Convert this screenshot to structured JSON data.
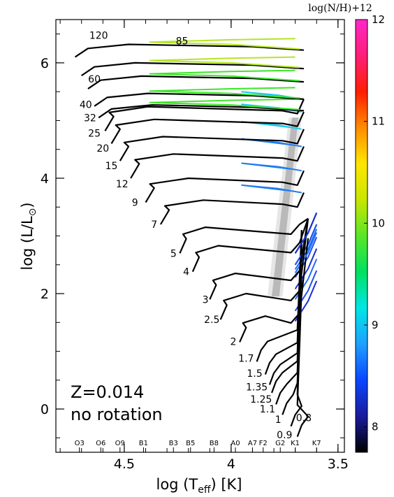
{
  "chart_data": {
    "type": "line",
    "xlabel": "log (T",
    "xlabel_sub": "eff",
    "xlabel_unit": ") [K]",
    "ylabel": "log (L/L",
    "ylabel_sun": "⊙",
    "ylabel_close": ")",
    "x_axis_reversed": true,
    "xlim": [
      4.82,
      3.47
    ],
    "ylim": [
      -0.75,
      6.75
    ],
    "xticks": [
      {
        "value": 4.5,
        "label": "4.5"
      },
      {
        "value": 4.0,
        "label": "4"
      },
      {
        "value": 3.5,
        "label": "3.5"
      }
    ],
    "yticks": [
      {
        "value": 0,
        "label": "0"
      },
      {
        "value": 2,
        "label": "2"
      },
      {
        "value": 4,
        "label": "4"
      },
      {
        "value": 6,
        "label": "6"
      }
    ],
    "spectral_types": [
      {
        "label": "O3",
        "x": 4.71
      },
      {
        "label": "O6",
        "x": 4.61
      },
      {
        "label": "O9",
        "x": 4.52
      },
      {
        "label": "B1",
        "x": 4.41
      },
      {
        "label": "B3",
        "x": 4.27
      },
      {
        "label": "B5",
        "x": 4.19
      },
      {
        "label": "B8",
        "x": 4.08
      },
      {
        "label": "A0",
        "x": 3.98
      },
      {
        "label": "A7",
        "x": 3.9
      },
      {
        "label": "F2",
        "x": 3.85
      },
      {
        "label": "G2",
        "x": 3.77
      },
      {
        "label": "K1",
        "x": 3.7
      },
      {
        "label": "K7",
        "x": 3.6
      }
    ],
    "annotation": {
      "line1": "Z=0.014",
      "line2": "no rotation"
    },
    "colorbar": {
      "title": "log(N/H)+12",
      "range": [
        7.75,
        12.0
      ],
      "ticks": [
        "8",
        "9",
        "10",
        "11",
        "12"
      ],
      "tick_values": [
        8,
        9,
        10,
        11,
        12
      ],
      "colors": [
        "#000000",
        "#1a1a9c",
        "#0a46ff",
        "#1ea0ff",
        "#00e6e6",
        "#00e060",
        "#5ae628",
        "#c8e600",
        "#ffe600",
        "#ff8c00",
        "#ff1e00",
        "#ff1e78",
        "#ff28c8"
      ]
    },
    "instability_strip": {
      "color": "#b4b4b4"
    },
    "tracks": [
      {
        "mass": "0.8",
        "zams": [
          3.69,
          -0.48
        ],
        "lx": 3.66,
        "ly": -0.15,
        "color": "#000000"
      },
      {
        "mass": "0.9",
        "zams": [
          3.72,
          -0.3
        ],
        "lx": 3.75,
        "ly": -0.45,
        "color": "#000000"
      },
      {
        "mass": "1",
        "zams": [
          3.76,
          -0.1
        ],
        "lx": 3.78,
        "ly": -0.18,
        "color": "#000000"
      },
      {
        "mass": "1.1",
        "zams": [
          3.79,
          0.08
        ],
        "lx": 3.83,
        "ly": 0.0,
        "color": "#000000"
      },
      {
        "mass": "1.25",
        "zams": [
          3.81,
          0.28
        ],
        "lx": 3.86,
        "ly": 0.17,
        "color": "#000000"
      },
      {
        "mass": "1.35",
        "zams": [
          3.82,
          0.42
        ],
        "lx": 3.88,
        "ly": 0.38,
        "color": "#000000"
      },
      {
        "mass": "1.5",
        "zams": [
          3.84,
          0.6
        ],
        "lx": 3.89,
        "ly": 0.62,
        "color": "#000000"
      },
      {
        "mass": "1.7",
        "zams": [
          3.88,
          0.82
        ],
        "lx": 3.93,
        "ly": 0.88,
        "color": "#000000"
      },
      {
        "mass": "2",
        "zams": [
          3.96,
          1.16
        ],
        "lx": 3.99,
        "ly": 1.17,
        "color": "#000000"
      },
      {
        "mass": "2.5",
        "zams": [
          4.05,
          1.55
        ],
        "lx": 4.09,
        "ly": 1.55,
        "color": "#000000"
      },
      {
        "mass": "3",
        "zams": [
          4.1,
          1.9
        ],
        "lx": 4.12,
        "ly": 1.9,
        "color": "#000000"
      },
      {
        "mass": "4",
        "zams": [
          4.18,
          2.38
        ],
        "lx": 4.21,
        "ly": 2.38,
        "color": "#000000"
      },
      {
        "mass": "5",
        "zams": [
          4.24,
          2.7
        ],
        "lx": 4.27,
        "ly": 2.7,
        "color": "#000000"
      },
      {
        "mass": "7",
        "zams": [
          4.33,
          3.2
        ],
        "lx": 4.36,
        "ly": 3.2,
        "color": "#000000"
      },
      {
        "mass": "9",
        "zams": [
          4.4,
          3.58
        ],
        "lx": 4.45,
        "ly": 3.58,
        "color": "#000000"
      },
      {
        "mass": "12",
        "zams": [
          4.47,
          4.0
        ],
        "lx": 4.51,
        "ly": 3.9,
        "color": "#000000"
      },
      {
        "mass": "15",
        "zams": [
          4.52,
          4.3
        ],
        "lx": 4.56,
        "ly": 4.22,
        "color": "#000000"
      },
      {
        "mass": "20",
        "zams": [
          4.56,
          4.6
        ],
        "lx": 4.6,
        "ly": 4.52,
        "color": "#000000"
      },
      {
        "mass": "25",
        "zams": [
          4.59,
          4.82
        ],
        "lx": 4.64,
        "ly": 4.78,
        "color": "#000000"
      },
      {
        "mass": "32",
        "zams": [
          4.62,
          5.05
        ],
        "lx": 4.66,
        "ly": 5.05,
        "color": "#000000"
      },
      {
        "mass": "40",
        "zams": [
          4.64,
          5.25
        ],
        "lx": 4.68,
        "ly": 5.28,
        "color": "#000000"
      },
      {
        "mass": "60",
        "zams": [
          4.67,
          5.55
        ],
        "lx": 4.64,
        "ly": 5.72,
        "color": "#000000"
      },
      {
        "mass": "85",
        "zams": [
          4.7,
          5.78
        ],
        "lx": 4.23,
        "ly": 6.38,
        "color": "#000000"
      },
      {
        "mass": "120",
        "zams": [
          4.73,
          6.1
        ],
        "lx": 4.62,
        "ly": 6.48,
        "color": "#000000"
      }
    ]
  }
}
